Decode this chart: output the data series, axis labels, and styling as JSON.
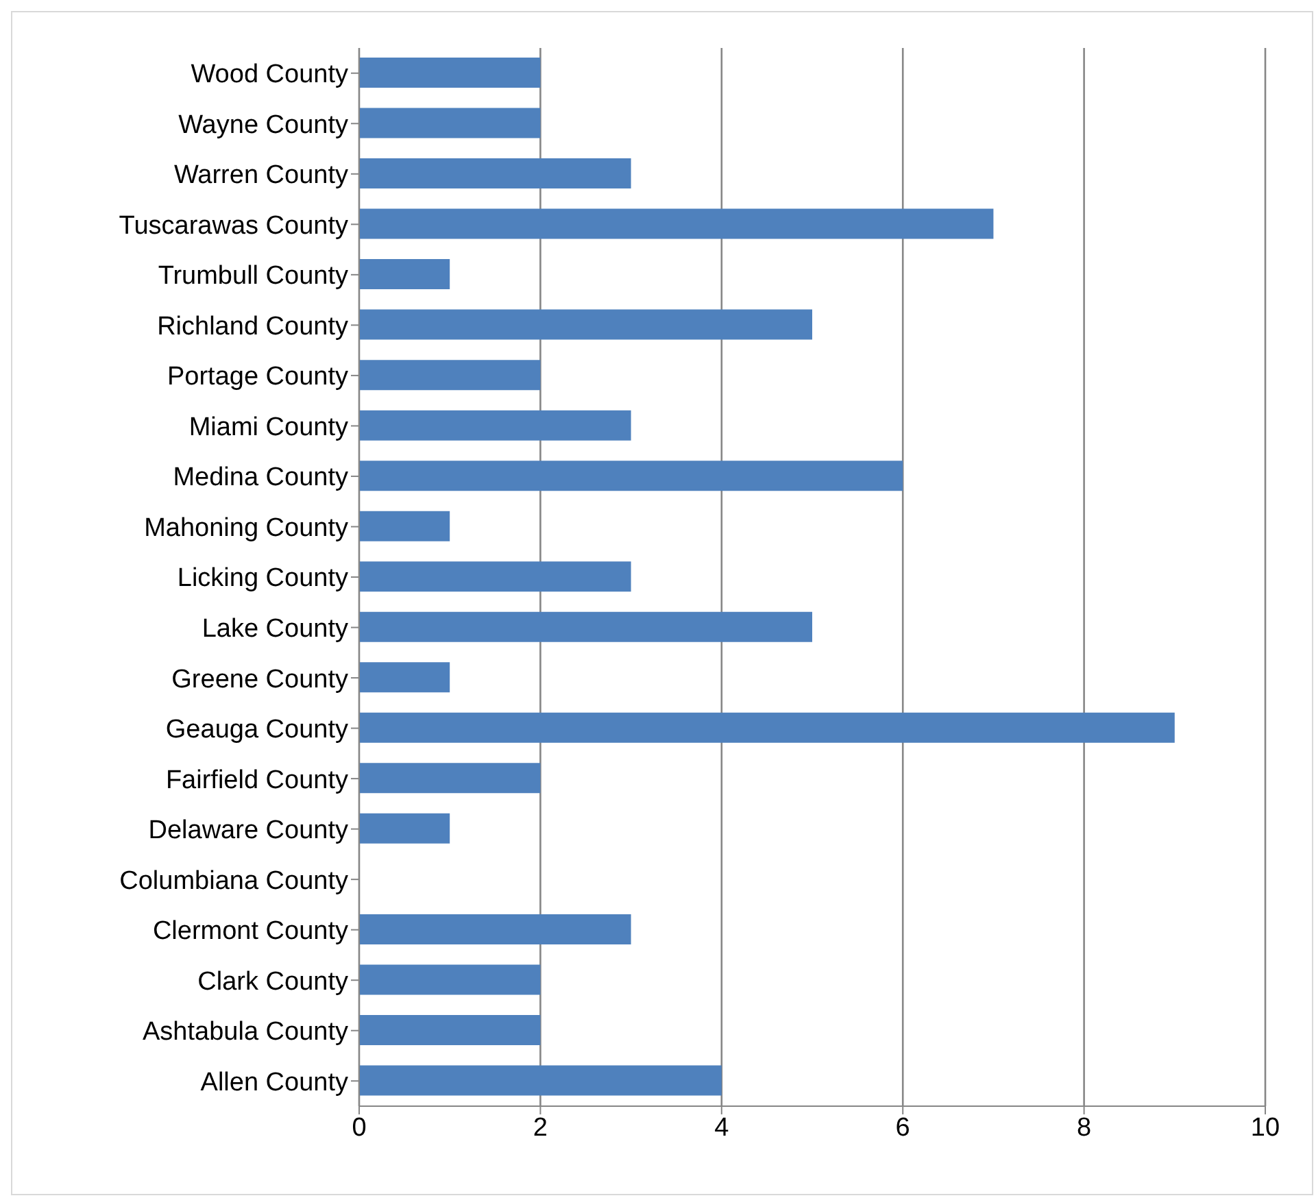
{
  "chart_data": {
    "type": "bar",
    "orientation": "horizontal",
    "categories": [
      "Wood County",
      "Wayne County",
      "Warren County",
      "Tuscarawas County",
      "Trumbull County",
      "Richland County",
      "Portage County",
      "Miami County",
      "Medina County",
      "Mahoning County",
      "Licking County",
      "Lake County",
      "Greene County",
      "Geauga County",
      "Fairfield County",
      "Delaware County",
      "Columbiana County",
      "Clermont County",
      "Clark County",
      "Ashtabula County",
      "Allen County"
    ],
    "values": [
      2,
      2,
      3,
      7,
      1,
      5,
      2,
      3,
      6,
      1,
      3,
      5,
      1,
      9,
      2,
      1,
      0,
      3,
      2,
      2,
      4
    ],
    "color": "#4f81bd",
    "xlim": [
      0,
      10
    ],
    "xticks": [
      0,
      2,
      4,
      6,
      8,
      10
    ],
    "grid": "x",
    "legend": false
  }
}
